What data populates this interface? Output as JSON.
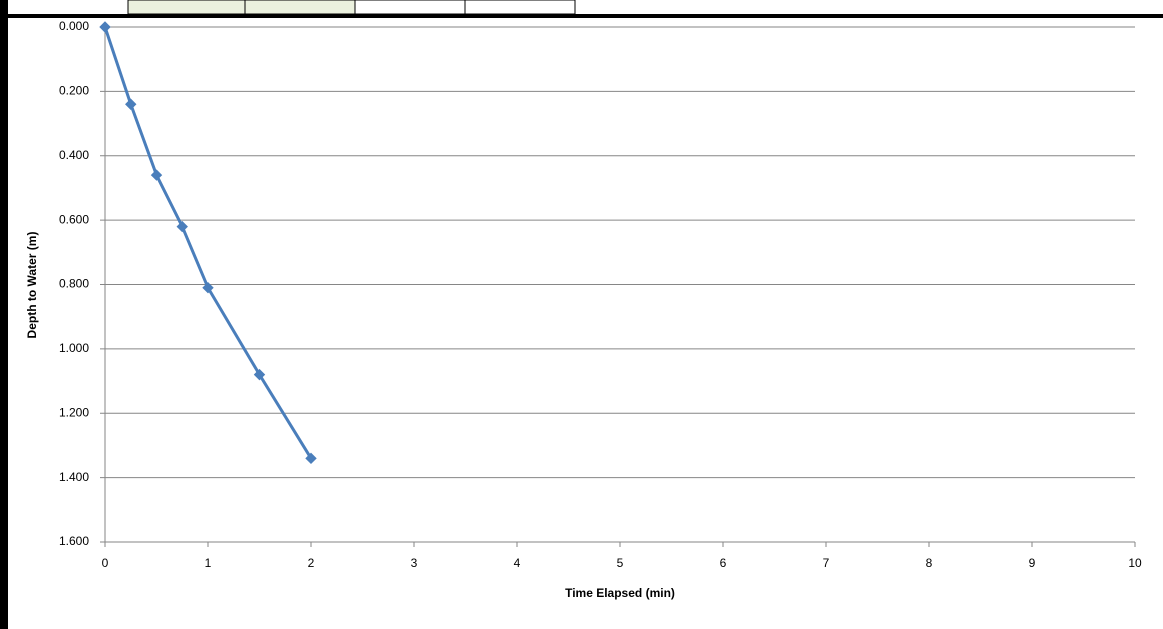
{
  "chart_data": {
    "type": "line",
    "x_label": "Time Elapsed (min)",
    "y_label": "Depth to Water (m)",
    "x": [
      0,
      0.25,
      0.5,
      0.75,
      1,
      1.5,
      2
    ],
    "values": [
      0,
      0.24,
      0.46,
      0.62,
      0.81,
      1.08,
      1.34
    ],
    "color": "#4a7ebb",
    "xlim": [
      0,
      10
    ],
    "xticks": [
      0,
      1,
      2,
      3,
      4,
      5,
      6,
      7,
      8,
      9,
      10
    ],
    "ylim": [
      0,
      1.6
    ],
    "yticks": [
      {
        "value": 0,
        "label": "0.000"
      },
      {
        "value": 0.2,
        "label": "0.200"
      },
      {
        "value": 0.4,
        "label": "0.400"
      },
      {
        "value": 0.6,
        "label": "0.600"
      },
      {
        "value": 0.8,
        "label": "0.800"
      },
      {
        "value": 1,
        "label": "1.000"
      },
      {
        "value": 1.2,
        "label": "1.200"
      },
      {
        "value": 1.4,
        "label": "1.400"
      },
      {
        "value": 1.6,
        "label": "1.600"
      }
    ],
    "y_reversed": true,
    "grid": true
  }
}
